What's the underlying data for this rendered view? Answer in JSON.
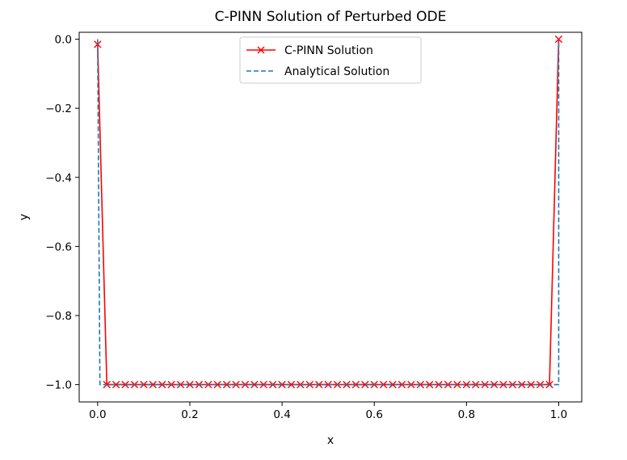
{
  "chart_data": {
    "type": "line",
    "title": "C-PINN Solution of Perturbed ODE",
    "xlabel": "x",
    "ylabel": "y",
    "xlim": [
      -0.04,
      1.05
    ],
    "ylim": [
      -1.05,
      0.02
    ],
    "x_ticks": [
      0.0,
      0.2,
      0.4,
      0.6,
      0.8,
      1.0
    ],
    "x_tick_labels": [
      "0.0",
      "0.2",
      "0.4",
      "0.6",
      "0.8",
      "1.0"
    ],
    "y_ticks": [
      0.0,
      -0.2,
      -0.4,
      -0.6,
      -0.8,
      -1.0
    ],
    "y_tick_labels": [
      "0.0",
      "−0.2",
      "−0.4",
      "−0.6",
      "−0.8",
      "−1.0"
    ],
    "grid": false,
    "legend_position": "top-center",
    "series": [
      {
        "name": "C-PINN Solution",
        "color": "#ff0000",
        "linestyle": "solid",
        "marker": "x",
        "x": [
          0.0,
          0.02,
          0.04,
          0.06,
          0.08,
          0.1,
          0.12,
          0.14,
          0.16,
          0.18,
          0.2,
          0.22,
          0.24,
          0.26,
          0.28,
          0.3,
          0.32,
          0.34,
          0.36,
          0.38,
          0.4,
          0.42,
          0.44,
          0.46,
          0.48,
          0.5,
          0.52,
          0.54,
          0.56,
          0.58,
          0.6,
          0.62,
          0.64,
          0.66,
          0.68,
          0.7,
          0.72,
          0.74,
          0.76,
          0.78,
          0.8,
          0.82,
          0.84,
          0.86,
          0.88,
          0.9,
          0.92,
          0.94,
          0.96,
          0.98,
          1.0
        ],
        "y": [
          -0.015,
          -1.0,
          -1.0,
          -1.0,
          -1.0,
          -1.0,
          -1.0,
          -1.0,
          -1.0,
          -1.0,
          -1.0,
          -1.0,
          -1.0,
          -1.0,
          -1.0,
          -1.0,
          -1.0,
          -1.0,
          -1.0,
          -1.0,
          -1.0,
          -1.0,
          -1.0,
          -1.0,
          -1.0,
          -1.0,
          -1.0,
          -1.0,
          -1.0,
          -1.0,
          -1.0,
          -1.0,
          -1.0,
          -1.0,
          -1.0,
          -1.0,
          -1.0,
          -1.0,
          -1.0,
          -1.0,
          -1.0,
          -1.0,
          -1.0,
          -1.0,
          -1.0,
          -1.0,
          -1.0,
          -1.0,
          -1.0,
          -1.0,
          0.0
        ]
      },
      {
        "name": "Analytical Solution",
        "color": "#1f77b4",
        "linestyle": "dashed",
        "marker": "none",
        "x": [
          0.0,
          0.005,
          1.0,
          1.0
        ],
        "y": [
          0.0,
          -1.0,
          -1.0,
          0.0
        ]
      }
    ]
  }
}
